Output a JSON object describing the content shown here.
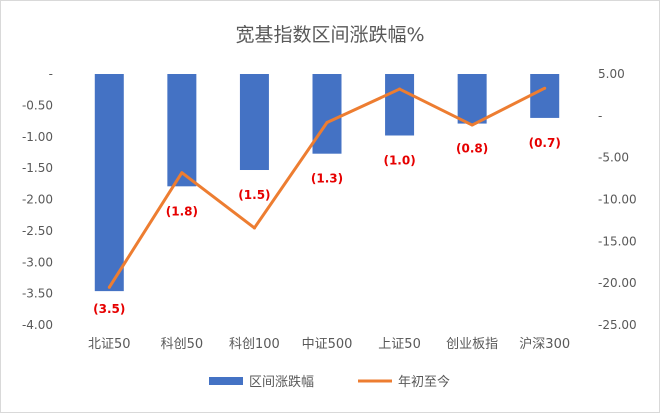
{
  "chart_data": {
    "type": "bar",
    "title": "宽基指数区间涨跌幅%",
    "categories": [
      "北证50",
      "科创50",
      "科创100",
      "中证500",
      "上证50",
      "创业板指",
      "沪深300"
    ],
    "series": [
      {
        "name": "区间涨跌幅",
        "type": "bar",
        "axis": "left",
        "color": "#4472c4",
        "values": [
          -3.46,
          -1.79,
          -1.53,
          -1.27,
          -0.98,
          -0.79,
          -0.7
        ],
        "data_labels": [
          "(3.5)",
          "(1.8)",
          "(1.5)",
          "(1.3)",
          "(1.0)",
          "(0.8)",
          "(0.7)"
        ]
      },
      {
        "name": "年初至今",
        "type": "line",
        "axis": "right",
        "color": "#ed7d31",
        "values": [
          -20.5,
          -6.8,
          -13.4,
          -0.8,
          3.2,
          -1.1,
          3.3
        ]
      }
    ],
    "left_axis": {
      "ylim": [
        -4.0,
        0
      ],
      "ticks": [
        0,
        -0.5,
        -1.0,
        -1.5,
        -2.0,
        -2.5,
        -3.0,
        -3.5,
        -4.0
      ],
      "tick_labels": [
        "-",
        "-0.50",
        "-1.00",
        "-1.50",
        "-2.00",
        "-2.50",
        "-3.00",
        "-3.50",
        "-4.00"
      ]
    },
    "right_axis": {
      "ylim": [
        -25.0,
        5.0
      ],
      "ticks": [
        5,
        0,
        -5,
        -10,
        -15,
        -20,
        -25
      ],
      "tick_labels": [
        "5.00",
        "-",
        "-5.00",
        "-10.00",
        "-15.00",
        "-20.00",
        "-25.00"
      ]
    },
    "grid": false,
    "legend_position": "bottom"
  }
}
